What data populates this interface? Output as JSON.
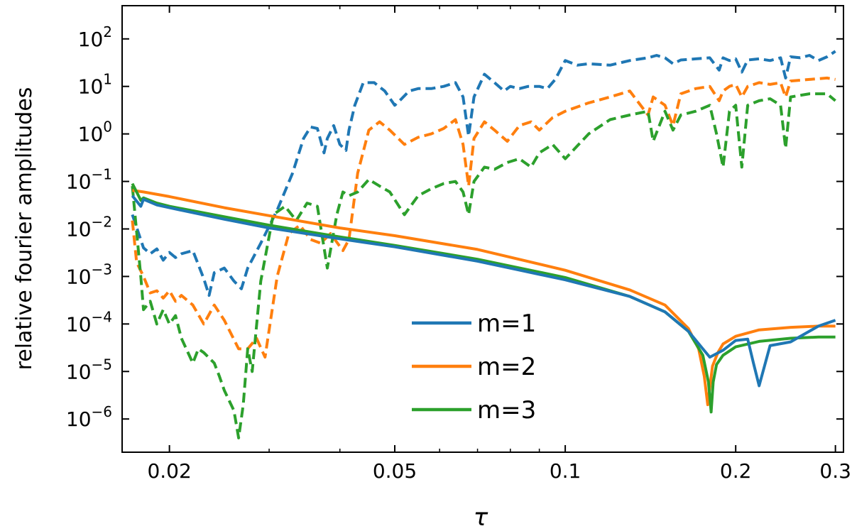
{
  "chart_data": {
    "type": "line",
    "title": "",
    "xlabel": "τ",
    "ylabel": "relative fourier amplitudes",
    "x_scale": "log",
    "y_scale": "log",
    "xlim": [
      0.0165,
      0.31
    ],
    "ylim": [
      2e-07,
      500
    ],
    "x_ticks": [
      {
        "value": 0.02,
        "label": "0.02"
      },
      {
        "value": 0.05,
        "label": "0.05"
      },
      {
        "value": 0.1,
        "label": "0.1"
      },
      {
        "value": 0.2,
        "label": "0.2"
      },
      {
        "value": 0.3,
        "label": "0.3"
      }
    ],
    "y_ticks": [
      {
        "value": 100,
        "base": "10",
        "exp": "2"
      },
      {
        "value": 10,
        "base": "10",
        "exp": "1"
      },
      {
        "value": 1,
        "base": "10",
        "exp": "0"
      },
      {
        "value": 0.1,
        "base": "10",
        "exp": "−1"
      },
      {
        "value": 0.01,
        "base": "10",
        "exp": "−2"
      },
      {
        "value": 0.001,
        "base": "10",
        "exp": "−3"
      },
      {
        "value": 0.0001,
        "base": "10",
        "exp": "−4"
      },
      {
        "value": 1e-05,
        "base": "10",
        "exp": "−5"
      },
      {
        "value": 1e-06,
        "base": "10",
        "exp": "−6"
      }
    ],
    "legend": {
      "location": "lower-center",
      "entries": [
        {
          "label": "m=1",
          "color": "#1f77b4"
        },
        {
          "label": "m=2",
          "color": "#ff7f0e"
        },
        {
          "label": "m=3",
          "color": "#2ca02c"
        }
      ]
    },
    "series": [
      {
        "name": "m=1 (solid)",
        "color": "#1f77b4",
        "style": "solid",
        "x": [
          0.0172,
          0.0178,
          0.018,
          0.019,
          0.02,
          0.025,
          0.03,
          0.04,
          0.05,
          0.07,
          0.1,
          0.13,
          0.15,
          0.165,
          0.175,
          0.18,
          0.19,
          0.2,
          0.21,
          0.215,
          0.22,
          0.23,
          0.25,
          0.28,
          0.3
        ],
        "y": [
          0.05,
          0.03,
          0.042,
          0.032,
          0.028,
          0.016,
          0.0105,
          0.0062,
          0.0042,
          0.0021,
          0.00085,
          0.00038,
          0.00018,
          7e-05,
          3e-05,
          2e-05,
          2.8e-05,
          4.5e-05,
          4.8e-05,
          1.5e-05,
          5e-06,
          3.5e-05,
          4.2e-05,
          9e-05,
          0.00012
        ]
      },
      {
        "name": "m=2 (solid)",
        "color": "#ff7f0e",
        "style": "solid",
        "x": [
          0.0172,
          0.018,
          0.02,
          0.025,
          0.03,
          0.04,
          0.05,
          0.07,
          0.1,
          0.13,
          0.15,
          0.165,
          0.172,
          0.176,
          0.1785,
          0.18,
          0.182,
          0.186,
          0.19,
          0.2,
          0.22,
          0.25,
          0.28,
          0.3
        ],
        "y": [
          0.065,
          0.06,
          0.048,
          0.028,
          0.019,
          0.0105,
          0.0072,
          0.0037,
          0.00135,
          0.00052,
          0.00025,
          8e-05,
          3e-05,
          8e-06,
          2e-06,
          4.5e-06,
          1.3e-05,
          2.5e-05,
          3.8e-05,
          5.5e-05,
          7.5e-05,
          8.5e-05,
          9e-05,
          9e-05
        ]
      },
      {
        "name": "m=3 (solid)",
        "color": "#2ca02c",
        "style": "solid",
        "x": [
          0.0172,
          0.0175,
          0.0178,
          0.018,
          0.019,
          0.02,
          0.025,
          0.03,
          0.04,
          0.05,
          0.07,
          0.1,
          0.13,
          0.15,
          0.165,
          0.175,
          0.179,
          0.181,
          0.1825,
          0.185,
          0.19,
          0.2,
          0.22,
          0.25,
          0.28,
          0.3
        ],
        "y": [
          0.09,
          0.06,
          0.04,
          0.045,
          0.035,
          0.03,
          0.018,
          0.012,
          0.0068,
          0.0045,
          0.0023,
          0.00095,
          0.00038,
          0.00018,
          7e-05,
          2.2e-05,
          6e-06,
          1.4e-06,
          6e-06,
          1.4e-05,
          2.2e-05,
          3.3e-05,
          4.3e-05,
          5e-05,
          5.3e-05,
          5.3e-05
        ]
      },
      {
        "name": "m=1 (dashed)",
        "color": "#1f77b4",
        "style": "dashed",
        "x": [
          0.0172,
          0.018,
          0.0185,
          0.019,
          0.0195,
          0.02,
          0.0205,
          0.021,
          0.022,
          0.023,
          0.0235,
          0.024,
          0.025,
          0.026,
          0.0268,
          0.0275,
          0.029,
          0.031,
          0.033,
          0.0345,
          0.0355,
          0.0365,
          0.0375,
          0.038,
          0.039,
          0.04,
          0.041,
          0.0415,
          0.0425,
          0.044,
          0.046,
          0.048,
          0.05,
          0.051,
          0.053,
          0.055,
          0.058,
          0.061,
          0.064,
          0.066,
          0.0675,
          0.069,
          0.072,
          0.075,
          0.078,
          0.08,
          0.083,
          0.086,
          0.09,
          0.093,
          0.096,
          0.1,
          0.105,
          0.11,
          0.12,
          0.13,
          0.14,
          0.145,
          0.15,
          0.155,
          0.16,
          0.17,
          0.18,
          0.187,
          0.19,
          0.195,
          0.2,
          0.205,
          0.21,
          0.22,
          0.23,
          0.24,
          0.245,
          0.25,
          0.26,
          0.27,
          0.28,
          0.29,
          0.3
        ],
        "y": [
          0.02,
          0.004,
          0.003,
          0.0038,
          0.0022,
          0.0032,
          0.0025,
          0.003,
          0.0035,
          0.0009,
          0.0004,
          0.0012,
          0.0015,
          0.0008,
          0.00055,
          0.0015,
          0.005,
          0.025,
          0.15,
          0.8,
          1.4,
          1.3,
          0.4,
          0.8,
          1.5,
          0.6,
          0.45,
          1.2,
          4,
          12,
          12,
          8,
          4,
          5,
          8,
          9,
          9,
          10,
          12,
          6,
          0.9,
          6,
          18,
          12,
          8,
          10,
          9,
          10,
          10,
          9,
          14,
          35,
          28,
          30,
          28,
          35,
          40,
          45,
          40,
          30,
          36,
          38,
          40,
          22,
          40,
          35,
          38,
          20,
          36,
          38,
          35,
          40,
          15,
          42,
          40,
          45,
          35,
          42,
          55
        ]
      },
      {
        "name": "m=2 (dashed)",
        "color": "#ff7f0e",
        "style": "dashed",
        "x": [
          0.0172,
          0.0175,
          0.018,
          0.0185,
          0.019,
          0.0195,
          0.02,
          0.0205,
          0.021,
          0.022,
          0.023,
          0.024,
          0.025,
          0.0265,
          0.0275,
          0.0285,
          0.0295,
          0.031,
          0.0325,
          0.034,
          0.0355,
          0.037,
          0.0385,
          0.0405,
          0.0415,
          0.043,
          0.045,
          0.047,
          0.049,
          0.052,
          0.055,
          0.058,
          0.061,
          0.064,
          0.066,
          0.0675,
          0.069,
          0.072,
          0.075,
          0.079,
          0.083,
          0.087,
          0.09,
          0.095,
          0.1,
          0.11,
          0.12,
          0.13,
          0.14,
          0.143,
          0.15,
          0.155,
          0.16,
          0.17,
          0.18,
          0.187,
          0.19,
          0.195,
          0.2,
          0.205,
          0.21,
          0.22,
          0.23,
          0.24,
          0.245,
          0.25,
          0.27,
          0.29,
          0.3
        ],
        "y": [
          0.015,
          0.002,
          0.001,
          0.00045,
          0.0005,
          0.00035,
          0.0005,
          0.0003,
          0.0004,
          0.00025,
          0.0001,
          0.00025,
          0.00012,
          3e-05,
          3e-05,
          5e-05,
          2e-05,
          0.001,
          0.008,
          0.012,
          0.006,
          0.005,
          0.008,
          0.0035,
          0.006,
          0.15,
          1.2,
          1.8,
          1.2,
          0.6,
          0.85,
          1,
          1.3,
          2,
          0.6,
          0.08,
          0.8,
          1.8,
          1.2,
          0.7,
          1.5,
          1.8,
          1.2,
          2.2,
          3,
          4.5,
          6,
          8,
          2.5,
          6,
          4,
          1.5,
          7,
          9,
          10,
          5,
          8,
          10,
          11,
          6,
          10,
          12,
          11,
          12,
          6,
          13,
          14,
          15,
          14
        ]
      },
      {
        "name": "m=3 (dashed)",
        "color": "#2ca02c",
        "style": "dashed",
        "x": [
          0.0172,
          0.0178,
          0.018,
          0.0185,
          0.019,
          0.0195,
          0.02,
          0.0205,
          0.021,
          0.022,
          0.0225,
          0.023,
          0.024,
          0.0245,
          0.025,
          0.026,
          0.0265,
          0.027,
          0.0275,
          0.028,
          0.029,
          0.0305,
          0.032,
          0.0335,
          0.035,
          0.0365,
          0.038,
          0.0395,
          0.0405,
          0.0415,
          0.043,
          0.045,
          0.047,
          0.049,
          0.052,
          0.055,
          0.058,
          0.061,
          0.064,
          0.066,
          0.0675,
          0.069,
          0.072,
          0.075,
          0.079,
          0.083,
          0.087,
          0.09,
          0.095,
          0.1,
          0.11,
          0.12,
          0.13,
          0.14,
          0.143,
          0.15,
          0.155,
          0.16,
          0.17,
          0.18,
          0.185,
          0.19,
          0.195,
          0.2,
          0.205,
          0.21,
          0.22,
          0.23,
          0.24,
          0.245,
          0.25,
          0.27,
          0.29,
          0.3
        ],
        "y": [
          0.08,
          0.001,
          0.0002,
          0.0003,
          0.0001,
          0.0002,
          0.0001,
          0.00015,
          5e-05,
          1.5e-05,
          3e-05,
          2.5e-05,
          1.5e-05,
          8e-06,
          4e-06,
          1.5e-06,
          4e-07,
          2e-06,
          3e-05,
          1e-05,
          0.0008,
          0.02,
          0.03,
          0.015,
          0.035,
          0.03,
          0.0015,
          0.02,
          0.06,
          0.05,
          0.06,
          0.11,
          0.08,
          0.06,
          0.02,
          0.05,
          0.07,
          0.09,
          0.1,
          0.06,
          0.02,
          0.1,
          0.2,
          0.18,
          0.25,
          0.3,
          0.2,
          0.4,
          0.6,
          0.3,
          1,
          2,
          2.5,
          3,
          0.7,
          3,
          1.2,
          2.5,
          3,
          4,
          1,
          0.2,
          3,
          4,
          0.2,
          4,
          5,
          5.5,
          4,
          0.5,
          6,
          7,
          7,
          5
        ]
      }
    ]
  }
}
